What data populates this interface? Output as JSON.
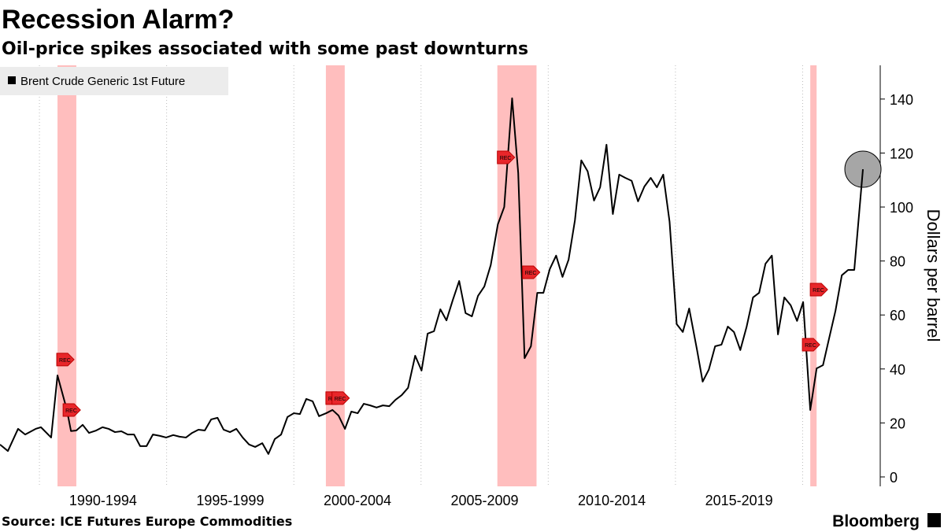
{
  "chart_data": {
    "type": "line",
    "title": "Recession Alarm?",
    "subtitle": "Oil-price spikes associated with some past downturns",
    "y_label": "Dollars per barrel",
    "source": "Source: ICE Futures Europe Commodities",
    "brand": "Bloomberg",
    "xlim": [
      1988.45,
      2023.05
    ],
    "ylim": [
      -3.5,
      152.5
    ],
    "yticks": [
      0,
      20,
      40,
      60,
      80,
      100,
      120,
      140
    ],
    "xticks": [
      {
        "value": 1992.5,
        "label": "1990-1994"
      },
      {
        "value": 1997.5,
        "label": "1995-1999"
      },
      {
        "value": 2002.5,
        "label": "2000-2004"
      },
      {
        "value": 2007.5,
        "label": "2005-2009"
      },
      {
        "value": 2012.5,
        "label": "2010-2014"
      },
      {
        "value": 2017.5,
        "label": "2015-2019"
      }
    ],
    "xgrid": [
      1990,
      1995,
      2000,
      2005,
      2010,
      2015,
      2020
    ],
    "grid": true,
    "legend": "top-left",
    "highlight_last": true,
    "highlight_color": "#a6a6a6",
    "band_color": "#ffb3b3",
    "recessions": [
      [
        1990.71,
        1991.45
      ],
      [
        2001.26,
        2002.0
      ],
      [
        2008.0,
        2009.54
      ],
      [
        2020.3,
        2020.55
      ]
    ],
    "annotations": [
      {
        "x": 1990.68,
        "y": 43.5,
        "text": "REC"
      },
      {
        "x": 1990.93,
        "y": 24.8,
        "text": "REC"
      },
      {
        "x": 2001.26,
        "y": 29.2,
        "text": "REC"
      },
      {
        "x": 2001.5,
        "y": 29.2,
        "text": "REC"
      },
      {
        "x": 2008.0,
        "y": 118.4,
        "text": "REC"
      },
      {
        "x": 2008.99,
        "y": 75.8,
        "text": "REC"
      },
      {
        "x": 2020.3,
        "y": 69.4,
        "text": "REC"
      },
      {
        "x": 2019.99,
        "y": 49,
        "text": "REC"
      }
    ],
    "x": [
      1988.45,
      1988.76,
      1989.16,
      1989.44,
      1989.85,
      1990.06,
      1990.46,
      1990.71,
      1991.08,
      1991.24,
      1991.45,
      1991.7,
      1991.95,
      1992.23,
      1992.48,
      1992.72,
      1992.97,
      1993.22,
      1993.47,
      1993.72,
      1993.96,
      1994.21,
      1994.46,
      1994.74,
      1994.98,
      1995.26,
      1995.51,
      1995.76,
      1996.0,
      1996.25,
      1996.5,
      1996.75,
      1997.0,
      1997.24,
      1997.49,
      1997.74,
      1997.99,
      1998.24,
      1998.48,
      1998.76,
      1999.0,
      1999.25,
      1999.5,
      1999.75,
      2000.0,
      2000.24,
      2000.49,
      2000.74,
      2000.99,
      2001.27,
      2001.52,
      2001.76,
      2002.01,
      2002.26,
      2002.51,
      2002.75,
      2003.0,
      2003.25,
      2003.5,
      2003.75,
      2004.0,
      2004.24,
      2004.49,
      2004.77,
      2005.02,
      2005.26,
      2005.51,
      2005.76,
      2006.0,
      2006.25,
      2006.5,
      2006.75,
      2007.0,
      2007.24,
      2007.49,
      2007.74,
      2008.02,
      2008.27,
      2008.58,
      2008.82,
      2009.07,
      2009.32,
      2009.57,
      2009.81,
      2010.06,
      2010.31,
      2010.56,
      2010.8,
      2011.05,
      2011.3,
      2011.55,
      2011.8,
      2012.04,
      2012.29,
      2012.54,
      2012.79,
      2013.03,
      2013.28,
      2013.53,
      2013.78,
      2014.03,
      2014.27,
      2014.52,
      2014.77,
      2015.05,
      2015.29,
      2015.54,
      2015.85,
      2016.07,
      2016.31,
      2016.56,
      2016.81,
      2017.06,
      2017.3,
      2017.55,
      2017.8,
      2018.05,
      2018.29,
      2018.54,
      2018.79,
      2019.03,
      2019.28,
      2019.53,
      2019.78,
      2020.02,
      2020.3,
      2020.55,
      2020.8,
      2021.04,
      2021.29,
      2021.54,
      2021.79,
      2022.03,
      2022.37
    ],
    "series": [
      {
        "name": "Brent Crude Generic 1st Future",
        "color": "#000000",
        "values": [
          12,
          9.6,
          17.8,
          15.7,
          17.8,
          18.4,
          14.6,
          37.6,
          24.8,
          17,
          17.2,
          19.3,
          16.3,
          17.2,
          18.4,
          17.8,
          16.6,
          16.9,
          15.7,
          15.7,
          11.4,
          11.4,
          15.7,
          15.2,
          14.6,
          15.5,
          14.9,
          14.6,
          16.3,
          17.5,
          17.2,
          21.3,
          21.9,
          17.5,
          16.6,
          17.8,
          14.6,
          12,
          11.1,
          12.5,
          8.5,
          14,
          15.7,
          22.2,
          23.6,
          23.3,
          28.9,
          28,
          22.5,
          23.6,
          24.8,
          22.7,
          17.8,
          24.2,
          23.6,
          27.1,
          26.5,
          25.7,
          26.5,
          26.2,
          28.6,
          30.3,
          33,
          44.9,
          39.4,
          53.1,
          54,
          62.1,
          58,
          65.6,
          72.6,
          60.7,
          59.5,
          67.1,
          70.6,
          78.5,
          93.6,
          100,
          140.3,
          112.6,
          44,
          48.4,
          68.2,
          68.2,
          77,
          82,
          74.1,
          80.5,
          95.1,
          117.3,
          113.2,
          102.4,
          107.3,
          123.1,
          97.4,
          112,
          110.8,
          109.7,
          102.1,
          107.6,
          110.8,
          107.3,
          112,
          94.5,
          56.6,
          53.7,
          62.4,
          47,
          35.3,
          39.7,
          48.4,
          49,
          55.7,
          53.7,
          47,
          55.7,
          66.5,
          68.2,
          79,
          82,
          52.8,
          66.5,
          63.6,
          57.8,
          64.8,
          24.8,
          40.2,
          41.4,
          51.3,
          61.5,
          74.7,
          76.7,
          76.7,
          114
        ]
      }
    ]
  }
}
